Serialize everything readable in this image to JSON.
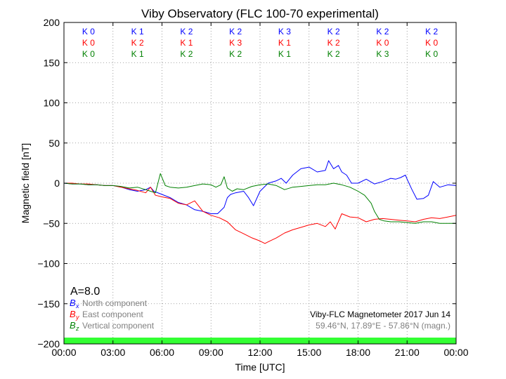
{
  "chart_data": {
    "type": "line",
    "title": "Viby Observatory (FLC 100-70 experimental)",
    "xlabel": "Time [UTC]",
    "ylabel": "Magnetic field [nT]",
    "xlim": [
      0,
      24
    ],
    "ylim": [
      -200,
      200
    ],
    "x_ticks": [
      "00:00",
      "03:00",
      "06:00",
      "09:00",
      "12:00",
      "15:00",
      "18:00",
      "21:00",
      "00:00"
    ],
    "y_ticks": [
      "200",
      "150",
      "100",
      "50",
      "0",
      "−50",
      "−100",
      "−150",
      "−200"
    ],
    "grid": true,
    "k_indices": [
      {
        "color": "#0000ff",
        "labels": [
          "K 0",
          "K 1",
          "K 2",
          "K 2",
          "K 3",
          "K 2",
          "K 2",
          "K 2"
        ]
      },
      {
        "color": "#ff0000",
        "labels": [
          "K 0",
          "K 2",
          "K 1",
          "K 3",
          "K 1",
          "K 2",
          "K 0",
          "K 0"
        ]
      },
      {
        "color": "#008000",
        "labels": [
          "K 0",
          "K 1",
          "K 2",
          "K 2",
          "K 1",
          "K 2",
          "K 3",
          "K 0"
        ]
      }
    ],
    "a_index": "A=8.0",
    "legend": [
      {
        "symbol": "B",
        "subscript": "x",
        "text": "North component",
        "color": "#0000ff"
      },
      {
        "symbol": "B",
        "subscript": "y",
        "text": "East component",
        "color": "#ff0000"
      },
      {
        "symbol": "B",
        "subscript": "z",
        "text": "Vertical component",
        "color": "#008000"
      }
    ],
    "info_line1": "Viby-FLC Magnetometer 2017 Jun 14",
    "info_line2": "59.46°N, 17.89°E - 57.86°N (magn.)",
    "status_bar_color": "#33ff33",
    "series": [
      {
        "name": "North component",
        "color": "#0000ff",
        "x": [
          0,
          0.5,
          1,
          1.5,
          2,
          2.5,
          3,
          3.5,
          4,
          4.5,
          5,
          5.3,
          5.5,
          6,
          6.5,
          7,
          7.5,
          8,
          8.5,
          9,
          9.4,
          9.8,
          10,
          10.2,
          10.5,
          11,
          11.3,
          11.6,
          12,
          12.5,
          13,
          13.3,
          13.6,
          14,
          14.5,
          15,
          15.5,
          16,
          16.2,
          16.5,
          16.8,
          17,
          17.3,
          17.6,
          18,
          18.5,
          19,
          19.5,
          20,
          20.3,
          20.6,
          20.9,
          21,
          21.3,
          21.6,
          22,
          22.3,
          22.6,
          23,
          23.5,
          24
        ],
        "y": [
          0,
          -1,
          -1,
          -2,
          -2,
          -3,
          -3,
          -5,
          -8,
          -10,
          -8,
          -5,
          -10,
          -14,
          -18,
          -24,
          -27,
          -33,
          -35,
          -38,
          -38,
          -30,
          -18,
          -14,
          -12,
          -10,
          -18,
          -28,
          -10,
          0,
          3,
          6,
          0,
          10,
          18,
          20,
          14,
          16,
          28,
          18,
          22,
          14,
          10,
          0,
          0,
          5,
          -1,
          2,
          6,
          5,
          7,
          10,
          5,
          -8,
          -20,
          -19,
          -15,
          2,
          -5,
          -2,
          -3
        ]
      },
      {
        "name": "East component",
        "color": "#ff0000",
        "x": [
          0,
          0.5,
          1,
          1.5,
          2,
          2.5,
          3,
          3.5,
          4,
          4.5,
          5,
          5.3,
          5.6,
          6,
          6.5,
          7,
          7.5,
          8,
          8.5,
          9,
          9.5,
          10,
          10.5,
          11,
          11.5,
          12,
          12.3,
          12.6,
          13,
          13.5,
          14,
          14.5,
          15,
          15.5,
          16,
          16.3,
          16.6,
          17,
          17.5,
          18,
          18.5,
          19,
          19.5,
          20,
          20.5,
          21,
          21.5,
          22,
          22.5,
          23,
          23.5,
          24
        ],
        "y": [
          0,
          0,
          -1,
          -1,
          -2,
          -3,
          -3,
          -5,
          -7,
          -9,
          -12,
          -5,
          -15,
          -17,
          -19,
          -25,
          -27,
          -22,
          -35,
          -40,
          -43,
          -48,
          -58,
          -63,
          -68,
          -72,
          -75,
          -72,
          -68,
          -62,
          -58,
          -55,
          -52,
          -50,
          -54,
          -48,
          -57,
          -38,
          -42,
          -43,
          -48,
          -45,
          -44,
          -45,
          -46,
          -47,
          -48,
          -45,
          -43,
          -44,
          -42,
          -40
        ]
      },
      {
        "name": "Vertical component",
        "color": "#008000",
        "x": [
          0,
          0.5,
          1,
          1.5,
          2,
          2.5,
          3,
          3.5,
          4,
          4.5,
          5,
          5.3,
          5.6,
          5.9,
          6.2,
          6.5,
          7,
          7.5,
          8,
          8.5,
          9,
          9.3,
          9.6,
          9.8,
          10,
          10.3,
          10.6,
          11,
          11.5,
          12,
          12.5,
          13,
          13.5,
          14,
          14.5,
          15,
          15.5,
          16,
          16.5,
          17,
          17.5,
          18,
          18.4,
          18.8,
          19,
          19.3,
          19.6,
          20,
          20.5,
          21,
          21.5,
          22,
          22.5,
          23,
          23.5,
          24
        ],
        "y": [
          0,
          -1,
          -1,
          -2,
          -2,
          -3,
          -3,
          -4,
          -6,
          -5,
          -8,
          -10,
          -12,
          12,
          -3,
          -5,
          -6,
          -5,
          -3,
          -1,
          -2,
          -5,
          -2,
          8,
          -6,
          -10,
          -7,
          -8,
          -4,
          -2,
          -1,
          -3,
          -8,
          -5,
          -4,
          -3,
          -2,
          -2,
          0,
          -2,
          -5,
          -10,
          -15,
          -25,
          -35,
          -45,
          -47,
          -48,
          -48,
          -49,
          -50,
          -48,
          -48,
          -50,
          -50,
          -50
        ]
      }
    ]
  }
}
